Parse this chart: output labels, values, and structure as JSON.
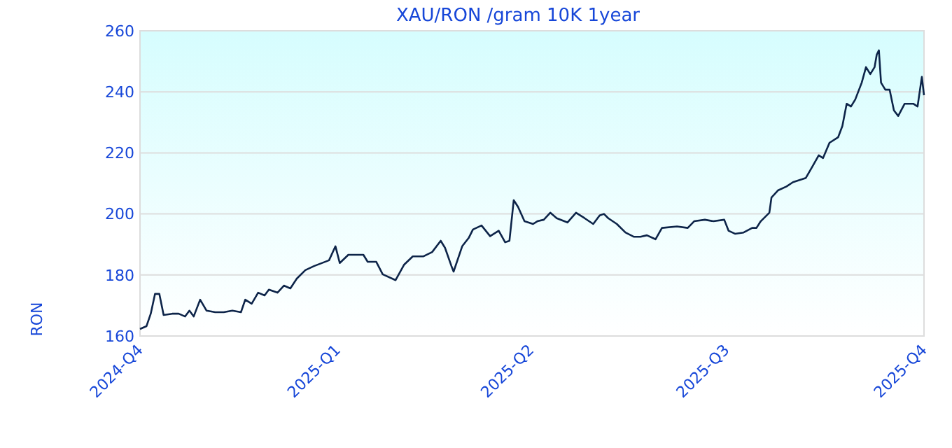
{
  "chart_data": {
    "type": "line",
    "title": "XAU/RON /gram 10K 1year",
    "ylabel": "RON",
    "x": [
      "2024-10-01",
      "2024-10-04",
      "2024-10-06",
      "2024-10-08",
      "2024-10-10",
      "2024-10-12",
      "2024-10-16",
      "2024-10-19",
      "2024-10-22",
      "2024-10-24",
      "2024-10-26",
      "2024-10-29",
      "2024-11-01",
      "2024-11-05",
      "2024-11-09",
      "2024-11-13",
      "2024-11-17",
      "2024-11-19",
      "2024-11-22",
      "2024-11-25",
      "2024-11-28",
      "2024-11-30",
      "2024-12-04",
      "2024-12-07",
      "2024-12-10",
      "2024-12-13",
      "2024-12-17",
      "2024-12-21",
      "2024-12-28",
      "2024-12-31",
      "2025-01-02",
      "2025-01-06",
      "2025-01-13",
      "2025-01-15",
      "2025-01-19",
      "2025-01-22",
      "2025-01-28",
      "2025-02-01",
      "2025-02-05",
      "2025-02-10",
      "2025-02-14",
      "2025-02-18",
      "2025-02-20",
      "2025-02-23",
      "2025-02-24",
      "2025-02-28",
      "2025-03-03",
      "2025-03-05",
      "2025-03-09",
      "2025-03-13",
      "2025-03-17",
      "2025-03-20",
      "2025-03-22",
      "2025-03-24",
      "2025-03-26",
      "2025-03-29",
      "2025-04-02",
      "2025-04-04",
      "2025-04-07",
      "2025-04-10",
      "2025-04-13",
      "2025-04-18",
      "2025-04-22",
      "2025-04-26",
      "2025-04-30",
      "2025-05-03",
      "2025-05-05",
      "2025-05-07",
      "2025-05-11",
      "2025-05-15",
      "2025-05-19",
      "2025-05-22",
      "2025-05-25",
      "2025-05-29",
      "2025-06-01",
      "2025-06-08",
      "2025-06-13",
      "2025-06-16",
      "2025-06-21",
      "2025-06-25",
      "2025-06-30",
      "2025-07-02",
      "2025-07-05",
      "2025-07-09",
      "2025-07-13",
      "2025-07-15",
      "2025-07-17",
      "2025-07-21",
      "2025-07-22",
      "2025-07-25",
      "2025-07-29",
      "2025-08-01",
      "2025-08-05",
      "2025-08-07",
      "2025-08-10",
      "2025-08-13",
      "2025-08-15",
      "2025-08-18",
      "2025-08-22",
      "2025-08-24",
      "2025-08-26",
      "2025-08-28",
      "2025-08-30",
      "2025-09-02",
      "2025-09-04",
      "2025-09-06",
      "2025-09-08",
      "2025-09-09",
      "2025-09-10",
      "2025-09-11",
      "2025-09-13",
      "2025-09-15",
      "2025-09-17",
      "2025-09-19",
      "2025-09-22",
      "2025-09-26",
      "2025-09-28",
      "2025-09-30",
      "2025-10-01"
    ],
    "series": [
      {
        "color": "#0d2449",
        "values": [
          162.3,
          163.2,
          167.3,
          173.8,
          173.8,
          166.9,
          167.3,
          167.3,
          166.4,
          168.3,
          166.4,
          171.9,
          168.3,
          167.8,
          167.8,
          168.3,
          167.8,
          171.9,
          170.6,
          174.2,
          173.3,
          175.2,
          174.2,
          176.5,
          175.6,
          178.8,
          181.6,
          182.9,
          184.8,
          189.4,
          183.9,
          186.6,
          186.6,
          184.3,
          184.3,
          180.2,
          178.3,
          183.4,
          186.1,
          186.1,
          187.5,
          191.2,
          188.9,
          182.9,
          181.1,
          189.4,
          192.1,
          194.9,
          196.2,
          192.7,
          194.5,
          190.7,
          191.2,
          204.5,
          202.3,
          197.6,
          196.7,
          197.6,
          198.1,
          200.4,
          198.6,
          197.2,
          200.4,
          198.6,
          196.7,
          199.5,
          200,
          198.6,
          196.7,
          193.9,
          192.5,
          192.5,
          193,
          191.7,
          195.4,
          195.9,
          195.4,
          197.6,
          198.1,
          197.6,
          198.1,
          194.5,
          193.5,
          193.9,
          195.4,
          195.4,
          197.6,
          200.4,
          205.4,
          207.7,
          209,
          210.4,
          211.3,
          211.8,
          215.5,
          219.2,
          218.3,
          223.3,
          225.1,
          228.8,
          236.1,
          235.2,
          237.5,
          243,
          248.1,
          245.8,
          248.1,
          252.2,
          253.6,
          243,
          240.7,
          240.7,
          233.9,
          232.1,
          236.1,
          236.1,
          235.2,
          244.9,
          238.9
        ]
      }
    ],
    "xlim": [
      "2024-10-01",
      "2025-10-01"
    ],
    "xticks": [
      {
        "value": "2024-10-01",
        "label": "2024-Q4"
      },
      {
        "value": "2025-01-01",
        "label": "2025-Q1"
      },
      {
        "value": "2025-04-01",
        "label": "2025-Q2"
      },
      {
        "value": "2025-07-01",
        "label": "2025-Q3"
      },
      {
        "value": "2025-10-01",
        "label": "2025-Q4"
      }
    ],
    "ylim": [
      160,
      260
    ],
    "yticks": [
      160,
      180,
      200,
      220,
      240,
      260
    ],
    "grid": "y",
    "marker": "none",
    "line_style": "solid"
  }
}
